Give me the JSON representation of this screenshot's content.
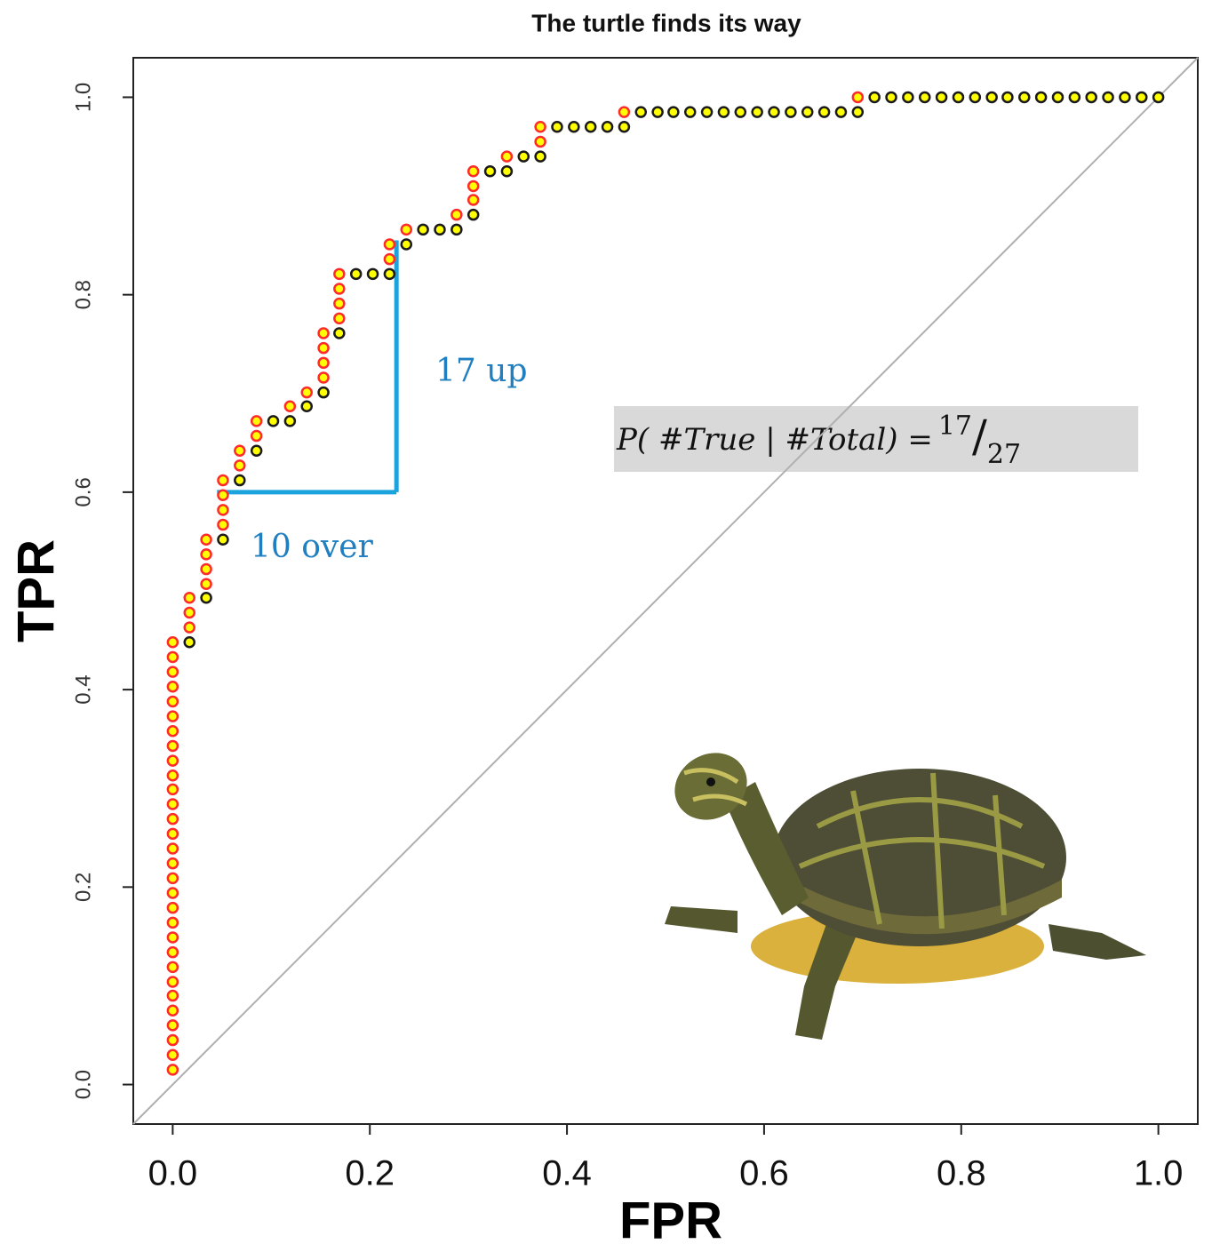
{
  "chart_data": {
    "type": "scatter",
    "title": "The turtle finds its way",
    "x_label": "FPR",
    "y_label": "TPR",
    "xlim": [
      -0.04,
      1.04
    ],
    "ylim": [
      -0.04,
      1.04
    ],
    "xticks": [
      {
        "value": 0,
        "label": "0.0"
      },
      0.2,
      0.4,
      0.6,
      0.8,
      {
        "value": 1,
        "label": "1.0"
      }
    ],
    "yticks": [
      {
        "value": 0,
        "label": "0.0"
      },
      0.2,
      0.4,
      0.6,
      0.8,
      {
        "value": 1,
        "label": "1.0"
      }
    ],
    "diagonal": true,
    "diagonal_color": "#b0b0b0",
    "marker_fill": "#ffff00",
    "series": [
      {
        "color": "#ff2a2a",
        "x": [
          0,
          0,
          0,
          0,
          0,
          0,
          0,
          0,
          0,
          0,
          0,
          0,
          0,
          0,
          0,
          0,
          0,
          0,
          0,
          0,
          0,
          0,
          0,
          0,
          0,
          0,
          0,
          0,
          0,
          0,
          0.017,
          0.017,
          0.017,
          0.034,
          0.034,
          0.034,
          0.034,
          0.051,
          0.051,
          0.051,
          0.051,
          0.068,
          0.068,
          0.085,
          0.085,
          0.119,
          0.136,
          0.153,
          0.153,
          0.153,
          0.153,
          0.169,
          0.169,
          0.169,
          0.169,
          0.22,
          0.22,
          0.237,
          0.288,
          0.305,
          0.305,
          0.305,
          0.339,
          0.373,
          0.373,
          0.458,
          0.695
        ],
        "values": [
          0.015,
          0.03,
          0.045,
          0.06,
          0.075,
          0.09,
          0.104,
          0.119,
          0.134,
          0.149,
          0.164,
          0.179,
          0.194,
          0.209,
          0.224,
          0.239,
          0.254,
          0.269,
          0.284,
          0.299,
          0.313,
          0.328,
          0.343,
          0.358,
          0.373,
          0.388,
          0.403,
          0.418,
          0.433,
          0.448,
          0.463,
          0.478,
          0.493,
          0.507,
          0.522,
          0.537,
          0.552,
          0.567,
          0.582,
          0.597,
          0.612,
          0.627,
          0.642,
          0.657,
          0.672,
          0.687,
          0.701,
          0.716,
          0.731,
          0.746,
          0.761,
          0.776,
          0.791,
          0.806,
          0.821,
          0.836,
          0.851,
          0.866,
          0.881,
          0.896,
          0.91,
          0.925,
          0.94,
          0.955,
          0.97,
          0.985,
          1
        ]
      },
      {
        "color": "#1a1a1a",
        "x": [
          0.017,
          0.034,
          0.051,
          0.068,
          0.085,
          0.102,
          0.119,
          0.136,
          0.153,
          0.169,
          0.186,
          0.203,
          0.22,
          0.237,
          0.254,
          0.271,
          0.288,
          0.305,
          0.322,
          0.339,
          0.356,
          0.373,
          0.39,
          0.407,
          0.424,
          0.441,
          0.458,
          0.475,
          0.492,
          0.508,
          0.525,
          0.542,
          0.559,
          0.576,
          0.593,
          0.61,
          0.627,
          0.644,
          0.661,
          0.678,
          0.695,
          0.712,
          0.729,
          0.746,
          0.763,
          0.78,
          0.797,
          0.814,
          0.831,
          0.847,
          0.864,
          0.881,
          0.898,
          0.915,
          0.932,
          0.949,
          0.966,
          0.983,
          1
        ],
        "values": [
          0.448,
          0.493,
          0.552,
          0.612,
          0.642,
          0.672,
          0.672,
          0.687,
          0.701,
          0.761,
          0.821,
          0.821,
          0.821,
          0.851,
          0.866,
          0.866,
          0.866,
          0.881,
          0.925,
          0.925,
          0.94,
          0.94,
          0.97,
          0.97,
          0.97,
          0.97,
          0.97,
          0.985,
          0.985,
          0.985,
          0.985,
          0.985,
          0.985,
          0.985,
          0.985,
          0.985,
          0.985,
          0.985,
          0.985,
          0.985,
          0.985,
          1,
          1,
          1,
          1,
          1,
          1,
          1,
          1,
          1,
          1,
          1,
          1,
          1,
          1,
          1,
          1,
          1,
          1
        ]
      }
    ],
    "annotations": {
      "color": "#1aa3dc",
      "text_color": "#1f7fc0",
      "lines": [
        {
          "x": [
            0.045,
            0.227
          ],
          "y": [
            0.6,
            0.6
          ]
        },
        {
          "x": [
            0.227,
            0.227
          ],
          "y": [
            0.6,
            0.855
          ]
        }
      ],
      "up_text": "17 up",
      "over_text": "10 over",
      "formula": {
        "text": "P( #True | #Total) =",
        "numerator": "17",
        "separator": "/",
        "denominator": "27"
      }
    }
  }
}
